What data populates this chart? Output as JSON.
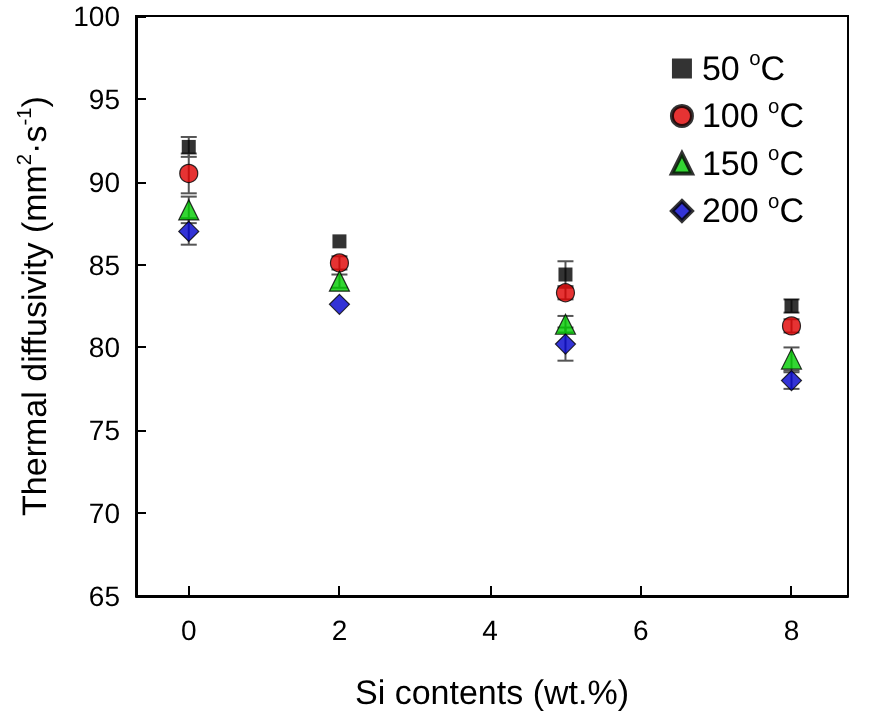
{
  "chart_data": {
    "type": "scatter",
    "xlabel": "Si contents (wt.%)",
    "ylabel": "Thermal diffusivity (mm$^{2}$·s$^{-1}$)",
    "x": [
      0,
      2,
      5,
      8
    ],
    "xlim": [
      -0.7,
      8.75
    ],
    "xticks": [
      0,
      2,
      4,
      6,
      8
    ],
    "ylim": [
      65,
      100
    ],
    "yticks": [
      65,
      70,
      75,
      80,
      85,
      90,
      95,
      100
    ],
    "legend": "top right",
    "grid": false,
    "series": [
      {
        "name": "50 $^{o}$C",
        "color": "#000000",
        "marker": "square",
        "values": [
          92.1,
          86.4,
          84.4,
          82.5
        ],
        "errors": [
          0.6,
          null,
          0.8,
          0.4
        ]
      },
      {
        "name": "100 $^{o}$C",
        "color": "#e00000",
        "marker": "circle",
        "values": [
          90.5,
          85.1,
          83.3,
          81.3
        ],
        "errors": [
          1.2,
          0.4,
          0.4,
          0.4
        ]
      },
      {
        "name": "150 $^{o}$C",
        "color": "#00cc00",
        "marker": "triangle",
        "values": [
          88.3,
          84.0,
          81.4,
          79.3
        ],
        "errors": [
          0.8,
          0.4,
          0.5,
          0.7
        ]
      },
      {
        "name": "200 $^{o}$C",
        "color": "#0000cc",
        "marker": "diamond",
        "values": [
          87.0,
          82.6,
          80.2,
          78.0
        ],
        "errors": [
          0.8,
          null,
          1.0,
          0.5
        ]
      }
    ]
  }
}
